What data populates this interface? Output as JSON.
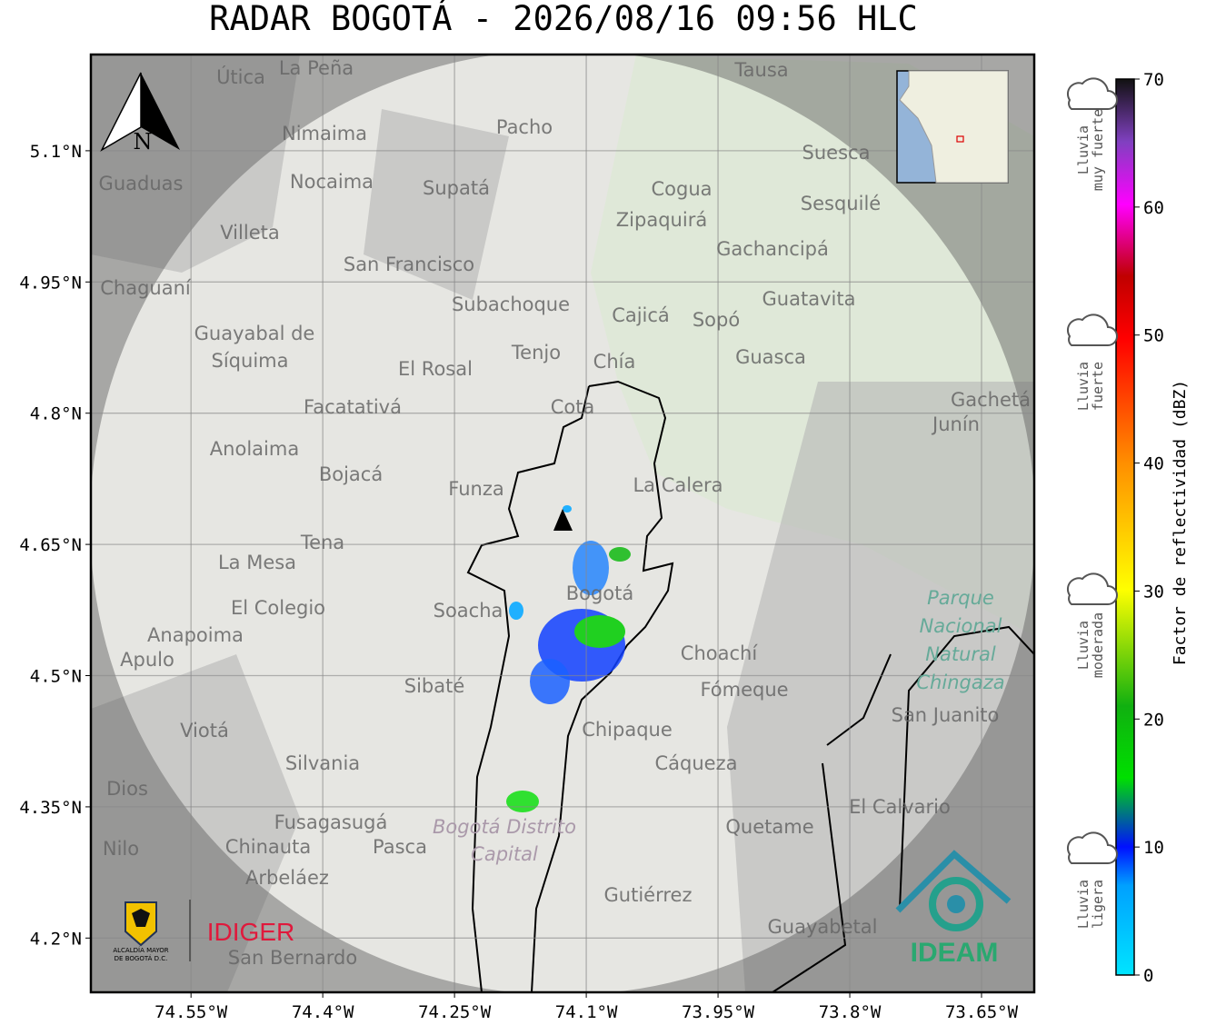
{
  "chart_data": {
    "type": "map",
    "title": "RADAR BOGOTÁ - 2026/08/16 09:56 HLC",
    "xlim": [
      -74.664,
      -73.59
    ],
    "ylim": [
      4.138,
      5.21
    ],
    "xticks": [
      {
        "value": -74.55,
        "label": "74.55°W"
      },
      {
        "value": -74.4,
        "label": "74.4°W"
      },
      {
        "value": -74.25,
        "label": "74.25°W"
      },
      {
        "value": -74.1,
        "label": "74.1°W"
      },
      {
        "value": -73.95,
        "label": "73.95°W"
      },
      {
        "value": -73.8,
        "label": "73.8°W"
      },
      {
        "value": -73.65,
        "label": "73.65°W"
      }
    ],
    "yticks": [
      {
        "value": 5.1,
        "label": "5.1°N"
      },
      {
        "value": 4.95,
        "label": "4.95°N"
      },
      {
        "value": 4.8,
        "label": "4.8°N"
      },
      {
        "value": 4.65,
        "label": "4.65°N"
      },
      {
        "value": 4.5,
        "label": "4.5°N"
      },
      {
        "value": 4.35,
        "label": "4.35°N"
      },
      {
        "value": 4.2,
        "label": "4.2°N"
      }
    ],
    "grid": true,
    "north": "N",
    "places": [
      "La Peña",
      "Útica",
      "Tausa",
      "Pacho",
      "Nimaima",
      "Suesca",
      "Guaduas",
      "Nocaima",
      "Supatá",
      "Cogua",
      "Sesquilé",
      "Zipaquirá",
      "Villeta",
      "Gachancipá",
      "San Francisco",
      "Chaguaní",
      "Guatavita",
      "Subachoque",
      "Cajicá",
      "Sopó",
      "Guayabal de",
      "Síquima",
      "Tenjo",
      "Chía",
      "Guasca",
      "El Rosal",
      "Facatativá",
      "Cota",
      "Gachetá",
      "Junín",
      "Anolaima",
      "Bojacá",
      "Funza",
      "La Calera",
      "Tena",
      "La Mesa",
      "Bogotá",
      "El Colegio",
      "Soacha",
      "Anapoima",
      "Apulo",
      "Choachí",
      "Sibaté",
      "Fómeque",
      "San Juanito",
      "Viotá",
      "Chipaque",
      "Silvania",
      "Cáqueza",
      "El Calvario",
      "Fusagasugá",
      "Quetame",
      "Pasca",
      "Chinauta",
      "Nilo",
      "Arbeláez",
      "Gutiérrez",
      "Guayabetal",
      "San Bernardo",
      "Dios"
    ],
    "park_labels": [
      "Parque",
      "Nacional",
      "Natural",
      "Chingaza"
    ],
    "district_labels": [
      "Bogotá Distrito",
      "Capital"
    ],
    "colorbar": {
      "label": "Factor de reflectividad (dBZ)",
      "lim": [
        0,
        70
      ],
      "ticks": [
        0,
        10,
        20,
        30,
        40,
        50,
        60,
        70
      ]
    },
    "rain_categories": [
      [
        "Lluvia",
        "muy fuerte"
      ],
      [
        "Lluvia",
        "fuerte"
      ],
      [
        "Lluvia",
        "moderada"
      ],
      [
        "Lluvia",
        "ligera"
      ]
    ],
    "logos": {
      "alcaldia": [
        "ALCALDÍA MAYOR",
        "DE BOGOTÁ D.C."
      ],
      "idiger": "IDIGER",
      "ideam": "IDEAM"
    }
  }
}
